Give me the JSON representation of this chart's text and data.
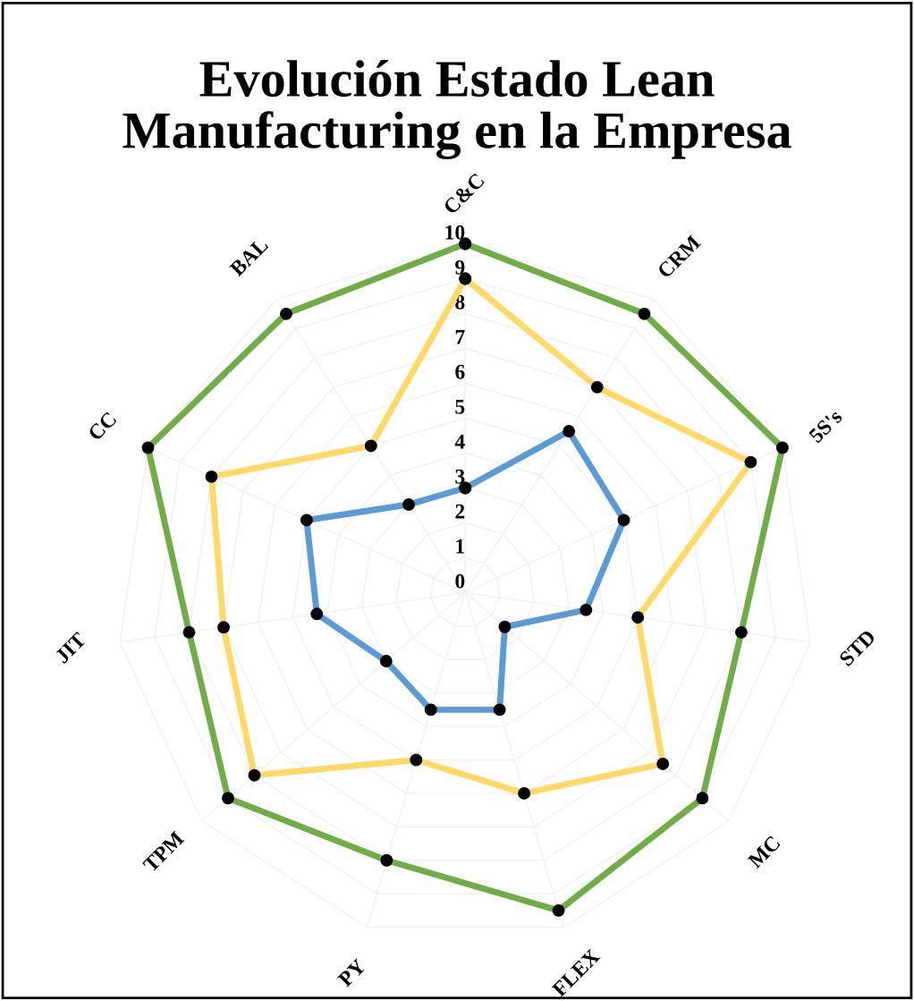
{
  "chart_data": {
    "type": "radar",
    "title": "Evolución Estado Lean\nManufacturing en la Empresa",
    "categories": [
      "C&C",
      "CRM",
      "5S's",
      "STD",
      "MC",
      "FLEX",
      "PY",
      "TPM",
      "JIT",
      "CC",
      "BAL"
    ],
    "series": [
      {
        "color": "#70ad47",
        "values": [
          10,
          9.5,
          10,
          8,
          9,
          9.5,
          8,
          9,
          8,
          10,
          9.5
        ]
      },
      {
        "color": "#ffd966",
        "values": [
          9,
          7,
          9,
          5,
          7.5,
          6,
          5,
          8,
          7,
          8,
          5
        ]
      },
      {
        "color": "#5b9bd5",
        "values": [
          3,
          5.5,
          5,
          3.5,
          1.5,
          3.5,
          3.5,
          3,
          4.3,
          5,
          3
        ]
      }
    ],
    "ylim": [
      0,
      10
    ],
    "yticks": [
      0,
      1,
      2,
      3,
      4,
      5,
      6,
      7,
      8,
      9,
      10
    ],
    "grid": true,
    "marker": "circle"
  }
}
